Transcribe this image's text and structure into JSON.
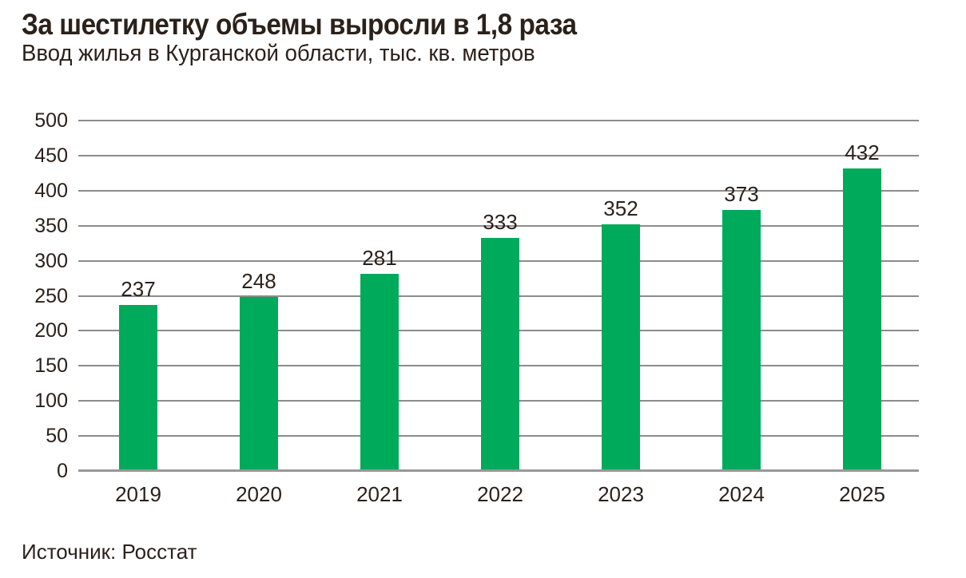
{
  "chart_data": {
    "type": "bar",
    "title": "За шестилетку объемы выросли в 1,8 раза",
    "subtitle": "Ввод жилья в Курганской области, тыс. кв. метров",
    "source": "Источник: Росстат",
    "xlabel": "",
    "ylabel": "",
    "categories": [
      "2019",
      "2020",
      "2021",
      "2022",
      "2023",
      "2024",
      "2025"
    ],
    "values": [
      237,
      248,
      281,
      333,
      352,
      373,
      432
    ],
    "value_labels_shown": true,
    "ylim": [
      0,
      500
    ],
    "ytick_step": 50,
    "yticks": [
      0,
      50,
      100,
      150,
      200,
      250,
      300,
      350,
      400,
      450,
      500
    ],
    "grid": "horizontal",
    "legend": "none",
    "colors": {
      "bar": "#00aa5b",
      "text": "#2b211b",
      "gridline": "#8c8c8c",
      "baseline": "#999999",
      "background": "#ffffff"
    }
  }
}
